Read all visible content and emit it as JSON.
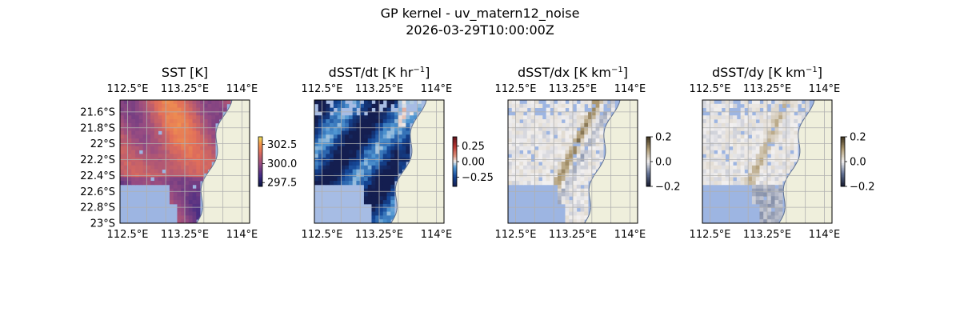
{
  "figure": {
    "title_line1": "GP kernel - uv_matern12_noise",
    "title_line2": "2026-03-29T10:00:00Z"
  },
  "chart_data": [
    {
      "type": "heatmap",
      "title_main": "SST [K]",
      "title_sup": "",
      "title_end": "",
      "colormap": "thermal",
      "xlim": [
        112.4,
        114.1
      ],
      "ylim": [
        -23.0,
        -21.45
      ],
      "x_ticks": [
        112.5,
        113.25,
        114.0
      ],
      "x_tick_labels": [
        "112.5°E",
        "113.25°E",
        "114°E"
      ],
      "y_ticks": [
        -21.6,
        -21.8,
        -22.0,
        -22.2,
        -22.4,
        -22.6,
        -22.8,
        -23.0
      ],
      "y_tick_labels": [
        "21.6°S",
        "21.8°S",
        "22°S",
        "22.2°S",
        "22.4°S",
        "22.6°S",
        "22.8°S",
        "23°S"
      ],
      "colorbar": {
        "range": [
          297,
          303.5
        ],
        "ticks": [
          302.5,
          300.0,
          297.5
        ],
        "tick_labels": [
          "302.5",
          "300.0",
          "297.5"
        ]
      },
      "missing_color": "#9db5e2",
      "land_color": "#efefdc"
    },
    {
      "type": "heatmap",
      "title_main": "dSST/dt [K hr",
      "title_sup": "−1",
      "title_end": "]",
      "colormap": "balance",
      "xlim": [
        112.4,
        114.1
      ],
      "ylim": [
        -23.0,
        -21.45
      ],
      "x_ticks": [
        112.5,
        113.25,
        114.0
      ],
      "x_tick_labels": [
        "112.5°E",
        "113.25°E",
        "114°E"
      ],
      "colorbar": {
        "range": [
          -0.4,
          0.4
        ],
        "ticks": [
          0.25,
          0.0,
          -0.25
        ],
        "tick_labels": [
          "0.25",
          "0.00",
          "−0.25"
        ]
      },
      "missing_color": "#a6bce4",
      "land_color": "#efefdc"
    },
    {
      "type": "heatmap",
      "title_main": "dSST/dx [K km",
      "title_sup": "−1",
      "title_end": "]",
      "colormap": "diff",
      "xlim": [
        112.4,
        114.1
      ],
      "ylim": [
        -23.0,
        -21.45
      ],
      "x_ticks": [
        112.5,
        113.25,
        114.0
      ],
      "x_tick_labels": [
        "112.5°E",
        "113.25°E",
        "114°E"
      ],
      "colorbar": {
        "range": [
          -0.2,
          0.2
        ],
        "ticks": [
          0.2,
          0.0,
          -0.2
        ],
        "tick_labels": [
          "0.2",
          "0.0",
          "−0.2"
        ]
      },
      "missing_color": "#9db5e2",
      "land_color": "#efefdc"
    },
    {
      "type": "heatmap",
      "title_main": "dSST/dy [K km",
      "title_sup": "−1",
      "title_end": "]",
      "colormap": "diff",
      "xlim": [
        112.4,
        114.1
      ],
      "ylim": [
        -23.0,
        -21.45
      ],
      "x_ticks": [
        112.5,
        113.25,
        114.0
      ],
      "x_tick_labels": [
        "112.5°E",
        "113.25°E",
        "114°E"
      ],
      "colorbar": {
        "range": [
          -0.2,
          0.2
        ],
        "ticks": [
          0.2,
          0.0,
          -0.2
        ],
        "tick_labels": [
          "0.2",
          "0.0",
          "−0.2"
        ]
      },
      "missing_color": "#9db5e2",
      "land_color": "#efefdc"
    }
  ]
}
